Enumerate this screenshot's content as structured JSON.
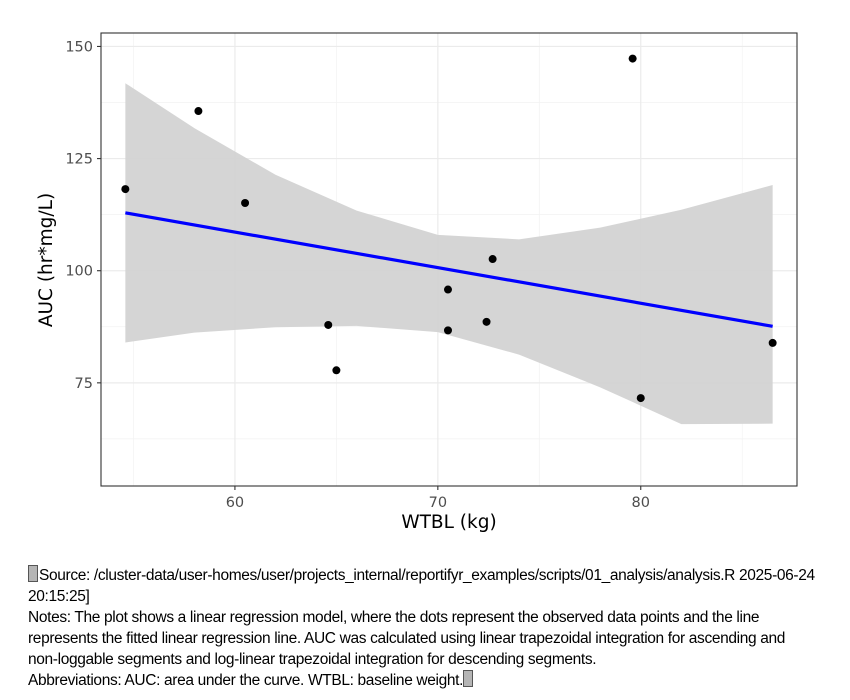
{
  "chart_data": {
    "type": "scatter",
    "xlabel": "WTBL (kg)",
    "ylabel": "AUC (hr*mg/L)",
    "xlim": [
      53.4,
      87.7
    ],
    "ylim": [
      52.0,
      153.0
    ],
    "xticks": [
      60,
      70,
      80
    ],
    "yticks": [
      75,
      100,
      125,
      150
    ],
    "grid": true,
    "points": [
      {
        "x": 54.6,
        "y": 118.2
      },
      {
        "x": 58.2,
        "y": 135.6
      },
      {
        "x": 60.5,
        "y": 115.1
      },
      {
        "x": 64.6,
        "y": 87.9
      },
      {
        "x": 65.0,
        "y": 77.8
      },
      {
        "x": 70.5,
        "y": 95.8
      },
      {
        "x": 70.5,
        "y": 86.7
      },
      {
        "x": 72.4,
        "y": 88.6
      },
      {
        "x": 72.7,
        "y": 102.6
      },
      {
        "x": 79.6,
        "y": 147.3
      },
      {
        "x": 80.0,
        "y": 71.6
      },
      {
        "x": 86.5,
        "y": 83.9
      }
    ],
    "fit_line": {
      "x": [
        54.6,
        86.5
      ],
      "y": [
        112.9,
        87.6
      ],
      "color": "#0000ff"
    },
    "confidence_band": {
      "x": [
        54.6,
        58,
        62,
        66,
        70,
        74,
        78,
        82,
        86.5
      ],
      "upper": [
        141.8,
        131.8,
        121.4,
        113.4,
        108.0,
        107.0,
        109.6,
        113.6,
        119.1
      ],
      "lower": [
        84.0,
        86.2,
        87.4,
        87.7,
        86.3,
        81.3,
        74.0,
        65.8,
        65.9
      ],
      "color": "#d3d3d3"
    }
  },
  "footnote": {
    "source": "Source: /cluster-data/user-homes/user/projects_internal/reportifyr_examples/scripts/01_analysis/analysis.R 2025-06-24 20:15:25]",
    "notes": "Notes: The plot shows a linear regression model, where the dots represent the observed data points and the line represents the fitted linear regression line. AUC was calculated using linear trapezoidal integration for ascending and non-loggable segments and log-linear trapezoidal integration for descending segments.",
    "abbreviations": "Abbreviations: AUC: area under the curve. WTBL: baseline weight."
  }
}
